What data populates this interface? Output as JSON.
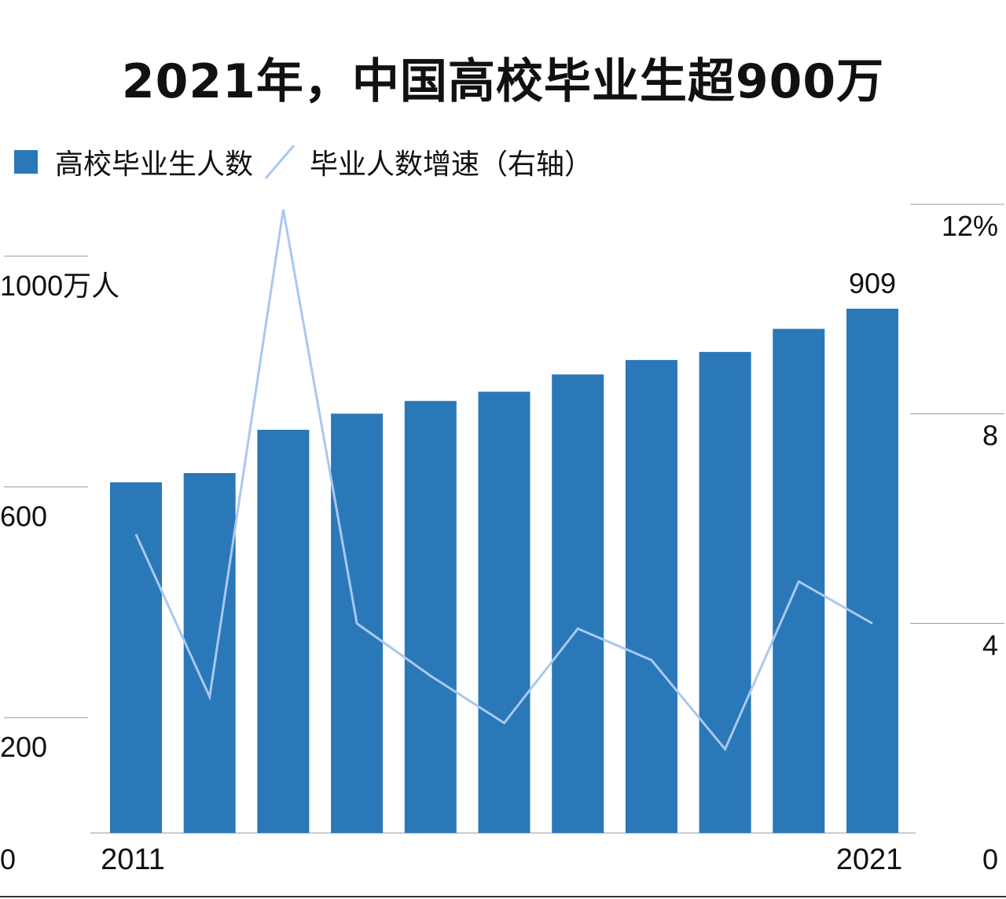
{
  "chart_data": {
    "type": "bar+line",
    "title": "2021年，中国高校毕业生超900万",
    "categories": [
      "2011",
      "2012",
      "2013",
      "2014",
      "2015",
      "2016",
      "2017",
      "2018",
      "2019",
      "2020",
      "2021"
    ],
    "x_tick_labels": [
      "2011",
      "2021"
    ],
    "series": [
      {
        "name": "高校毕业生人数",
        "type": "bar",
        "axis": "left",
        "color": "#2a78b8",
        "values": [
          608,
          624,
          699,
          727,
          749,
          765,
          795,
          820,
          834,
          874,
          909
        ]
      },
      {
        "name": "毕业人数增速（右轴）",
        "type": "line",
        "axis": "right",
        "color": "#a9c8f0",
        "values": [
          5.7,
          2.6,
          11.9,
          4.0,
          3.0,
          2.1,
          3.9,
          3.3,
          1.6,
          4.8,
          4.0
        ]
      }
    ],
    "data_labels": [
      {
        "category": "2021",
        "text": "909"
      }
    ],
    "left_axis": {
      "ylim": [
        0,
        1000
      ],
      "ticks": [
        "0",
        "200",
        "600",
        "1000万人"
      ],
      "tick_values": [
        0,
        200,
        600,
        1000
      ]
    },
    "right_axis": {
      "ylim": [
        0,
        12
      ],
      "ticks": [
        "0",
        "4",
        "8",
        "12%"
      ],
      "tick_values": [
        0,
        4,
        8,
        12
      ]
    },
    "legend": "top-left",
    "grid": false
  }
}
